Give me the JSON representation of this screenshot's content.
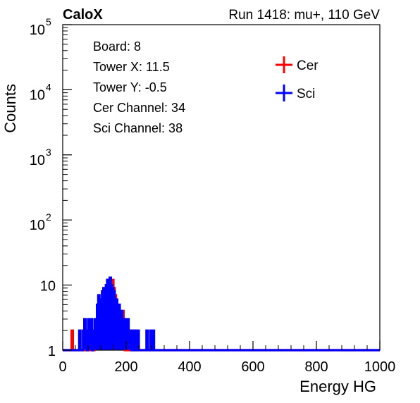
{
  "header": {
    "brand": "CaloX",
    "run_info": "Run 1418: mu+, 110 GeV"
  },
  "info_box": {
    "lines": [
      "Board: 8",
      "Tower X: 11.5",
      "Tower Y: -0.5",
      "Cer Channel: 34",
      "Sci Channel: 38"
    ]
  },
  "chart_data": {
    "type": "histogram",
    "xlabel": "Energy HG",
    "ylabel": "Counts",
    "xlim": [
      0,
      1000
    ],
    "ylim": [
      1,
      100000
    ],
    "y_scale": "log",
    "grid": false,
    "x_ticks": [
      0,
      200,
      400,
      600,
      800,
      1000
    ],
    "x_tick_labels": [
      "0",
      "200",
      "400",
      "600",
      "800",
      "1000"
    ],
    "y_ticks": [
      1,
      10,
      100,
      1000,
      10000,
      100000
    ],
    "y_tick_labels": [
      {
        "base": "1",
        "exp": ""
      },
      {
        "base": "10",
        "exp": ""
      },
      {
        "base": "10",
        "exp": "2"
      },
      {
        "base": "10",
        "exp": "3"
      },
      {
        "base": "10",
        "exp": "4"
      },
      {
        "base": "10",
        "exp": "5"
      }
    ],
    "legend_position": "top-right",
    "bin_width": 4,
    "series": [
      {
        "name": "Cer",
        "color": "#ff0000",
        "bins": [
          [
            28,
            2
          ],
          [
            64,
            2
          ],
          [
            80,
            1
          ],
          [
            100,
            2
          ],
          [
            104,
            3
          ],
          [
            108,
            2
          ],
          [
            112,
            4
          ],
          [
            116,
            3
          ],
          [
            120,
            6
          ],
          [
            124,
            8
          ],
          [
            128,
            7
          ],
          [
            132,
            5
          ],
          [
            136,
            9
          ],
          [
            140,
            11
          ],
          [
            144,
            12
          ],
          [
            148,
            10
          ],
          [
            152,
            8
          ],
          [
            156,
            12
          ],
          [
            160,
            9
          ],
          [
            164,
            7
          ],
          [
            168,
            5
          ],
          [
            172,
            3
          ],
          [
            176,
            4
          ],
          [
            180,
            2
          ],
          [
            184,
            3
          ],
          [
            188,
            4
          ],
          [
            192,
            2
          ],
          [
            196,
            1
          ],
          [
            200,
            2
          ],
          [
            204,
            1
          ],
          [
            208,
            2
          ],
          [
            212,
            1
          ],
          [
            216,
            2
          ],
          [
            220,
            1
          ],
          [
            228,
            2
          ],
          [
            236,
            1
          ],
          [
            244,
            1
          ],
          [
            260,
            1
          ],
          [
            272,
            1
          ]
        ]
      },
      {
        "name": "Sci",
        "color": "#0000ff",
        "bins": [
          [
            48,
            1
          ],
          [
            52,
            2
          ],
          [
            56,
            1
          ],
          [
            60,
            1
          ],
          [
            64,
            2
          ],
          [
            68,
            3
          ],
          [
            72,
            2
          ],
          [
            76,
            1
          ],
          [
            80,
            3
          ],
          [
            84,
            2
          ],
          [
            88,
            3
          ],
          [
            92,
            1
          ],
          [
            96,
            2
          ],
          [
            100,
            3
          ],
          [
            104,
            2
          ],
          [
            108,
            5
          ],
          [
            112,
            7
          ],
          [
            116,
            6
          ],
          [
            120,
            5
          ],
          [
            124,
            8
          ],
          [
            128,
            9
          ],
          [
            132,
            7
          ],
          [
            136,
            10
          ],
          [
            140,
            12
          ],
          [
            144,
            11
          ],
          [
            148,
            13
          ],
          [
            152,
            10
          ],
          [
            156,
            9
          ],
          [
            160,
            8
          ],
          [
            164,
            5
          ],
          [
            168,
            6
          ],
          [
            172,
            4
          ],
          [
            176,
            5
          ],
          [
            180,
            3
          ],
          [
            184,
            4
          ],
          [
            188,
            3
          ],
          [
            192,
            2
          ],
          [
            196,
            3
          ],
          [
            200,
            2
          ],
          [
            204,
            3
          ],
          [
            208,
            2
          ],
          [
            212,
            2
          ],
          [
            216,
            1
          ],
          [
            220,
            2
          ],
          [
            224,
            1
          ],
          [
            228,
            2
          ],
          [
            232,
            1
          ],
          [
            236,
            2
          ],
          [
            240,
            1
          ],
          [
            248,
            1
          ],
          [
            260,
            1
          ],
          [
            264,
            2
          ],
          [
            268,
            1
          ],
          [
            276,
            2
          ],
          [
            280,
            1
          ],
          [
            284,
            2
          ]
        ]
      }
    ]
  }
}
